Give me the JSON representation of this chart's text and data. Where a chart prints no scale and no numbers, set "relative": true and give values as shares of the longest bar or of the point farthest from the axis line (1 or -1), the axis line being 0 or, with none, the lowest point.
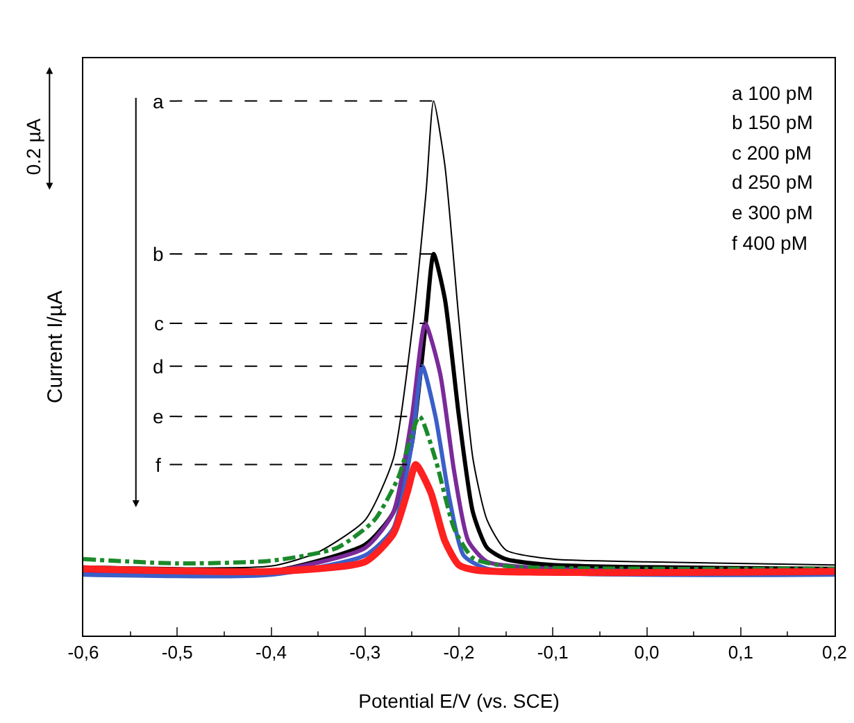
{
  "chart_data": {
    "type": "line",
    "relative": true,
    "xlabel": "Potential E/V (vs. SCE)",
    "ylabel": "Current I/µA",
    "xlim": [
      -0.6,
      0.2
    ],
    "xticks": [
      {
        "value": -0.6,
        "label": "-0,6"
      },
      {
        "value": -0.5,
        "label": "-0,5"
      },
      {
        "value": -0.4,
        "label": "-0,4"
      },
      {
        "value": -0.3,
        "label": "-0,3"
      },
      {
        "value": -0.2,
        "label": "-0,2"
      },
      {
        "value": -0.1,
        "label": "-0,1"
      },
      {
        "value": 0,
        "label": "0,0"
      },
      {
        "value": 0.1,
        "label": "0,1"
      },
      {
        "value": 0.2,
        "label": "0,2"
      }
    ],
    "grid": false,
    "marker": "none",
    "series": [
      {
        "color": "#000000",
        "line_style": "solid",
        "x": [
          -0.6,
          -0.4,
          -0.35,
          -0.3,
          -0.27,
          -0.25,
          -0.235,
          -0.227,
          -0.215,
          -0.2,
          -0.185,
          -0.17,
          -0.15,
          -0.1,
          0,
          0.2
        ],
        "values": [
          0.13,
          0.13,
          0.156,
          0.216,
          0.33,
          0.57,
          0.83,
          1,
          0.88,
          0.59,
          0.33,
          0.216,
          0.16,
          0.143,
          0.138,
          0.132
        ]
      },
      {
        "color": "#000000",
        "line_style": "solid",
        "x": [
          -0.6,
          -0.4,
          -0.3,
          -0.27,
          -0.25,
          -0.235,
          -0.227,
          -0.215,
          -0.2,
          -0.185,
          -0.17,
          -0.15,
          -0.1,
          0.2
        ],
        "values": [
          0.125,
          0.12,
          0.17,
          0.23,
          0.36,
          0.59,
          0.714,
          0.63,
          0.41,
          0.23,
          0.164,
          0.143,
          0.132,
          0.125
        ]
      },
      {
        "color": "#7b2a9a",
        "line_style": "solid",
        "x": [
          -0.6,
          -0.4,
          -0.3,
          -0.27,
          -0.25,
          -0.236,
          -0.22,
          -0.205,
          -0.19,
          -0.17,
          -0.1,
          0.2
        ],
        "values": [
          0.12,
          0.12,
          0.164,
          0.23,
          0.41,
          0.584,
          0.49,
          0.306,
          0.177,
          0.138,
          0.125,
          0.117
        ]
      },
      {
        "color": "#3a5fc8",
        "line_style": "solid",
        "x": [
          -0.6,
          -0.4,
          -0.3,
          -0.27,
          -0.25,
          -0.239,
          -0.225,
          -0.21,
          -0.195,
          -0.17,
          0.2
        ],
        "values": [
          0.114,
          0.114,
          0.15,
          0.2,
          0.36,
          0.504,
          0.41,
          0.255,
          0.15,
          0.125,
          0.114
        ]
      },
      {
        "color": "#1a8a2a",
        "line_style": "dashed",
        "x": [
          -0.6,
          -0.5,
          -0.4,
          -0.33,
          -0.29,
          -0.265,
          -0.242,
          -0.225,
          -0.205,
          -0.185,
          -0.15,
          0,
          0.2
        ],
        "values": [
          0.143,
          0.135,
          0.14,
          0.164,
          0.216,
          0.294,
          0.41,
          0.33,
          0.2,
          0.145,
          0.13,
          0.125,
          0.125
        ]
      },
      {
        "color": "#ff2020",
        "line_style": "solid",
        "x": [
          -0.6,
          -0.4,
          -0.3,
          -0.27,
          -0.255,
          -0.246,
          -0.23,
          -0.215,
          -0.2,
          -0.18,
          0.2
        ],
        "values": [
          0.125,
          0.12,
          0.138,
          0.19,
          0.268,
          0.32,
          0.268,
          0.177,
          0.132,
          0.122,
          0.12
        ]
      }
    ],
    "annotations": [
      "0.2 µA",
      "a 100 pM",
      "b 150 pM",
      "c 200 pM",
      "d 250 pM",
      "e 300 pM",
      "f 400 pM",
      {
        "text": "a",
        "x": -0.227,
        "y": 1
      },
      {
        "text": "b",
        "x": -0.227,
        "y": 0.714
      },
      {
        "text": "c",
        "x": -0.236,
        "y": 0.584
      },
      {
        "text": "d",
        "x": -0.239,
        "y": 0.504
      },
      {
        "text": "e",
        "x": -0.242,
        "y": 0.41
      },
      {
        "text": "f",
        "x": -0.246,
        "y": 0.32
      }
    ]
  }
}
